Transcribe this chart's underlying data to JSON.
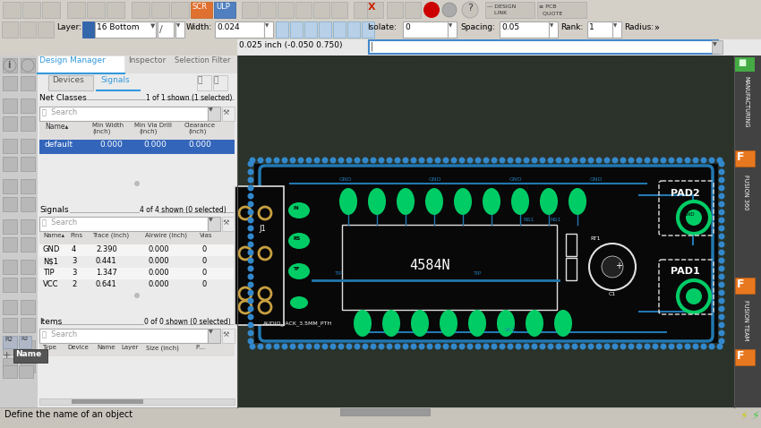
{
  "bg_main": "#2b2b2b",
  "bg_panel": "#ebebeb",
  "bg_toolbar": "#d4d0c8",
  "bg_canvas": "#2a322a",
  "grid_color": "#323c32",
  "board_bg": "#080808",
  "trace_color": "#2278b0",
  "pad_color": "#00cc66",
  "pad_dark": "#004422",
  "text_white": "#ffffff",
  "text_black": "#000000",
  "tab_active_color": "#3399dd",
  "row_selected_bg": "#3366bb",
  "toolbar_bg": "#d4d0c8",
  "status_bar_bg": "#c8c4bc",
  "right_panel_bg": "#404040",
  "fusion_orange": "#e87820",
  "fusion_green": "#44aa44",
  "via_dot_color": "#3388cc",
  "thole_color": "#c8a040",
  "white_outline": "#e0e0e0",
  "gray_outline": "#888888",
  "net_classes_header": "Net Classes",
  "net_classes_count": "1 of 1 shown (1 selected)",
  "signals_header": "Signals",
  "signals_count": "4 of 4 shown (0 selected)",
  "items_header": "Items",
  "items_count": "0 of 0 shown (0 selected)",
  "signals": [
    [
      "GND",
      "4",
      "2.390",
      "0.000",
      "0"
    ],
    [
      "N$1",
      "3",
      "0.441",
      "0.000",
      "0"
    ],
    [
      "TIP",
      "3",
      "1.347",
      "0.000",
      "0"
    ],
    [
      "VCC",
      "2",
      "0.641",
      "0.000",
      "0"
    ]
  ],
  "tab1": "Design Manager",
  "tab2": "Inspector",
  "tab3": "Selection Filter",
  "sub_tab1": "Devices",
  "sub_tab2": "Signals",
  "status_text": "Define the name of an object",
  "board_label": "J1",
  "component_label": "AUDIO_JACK_3.5MM_PTH",
  "ic_label": "4584N",
  "pad2_label": "PAD2",
  "pad1_label": "PAD1",
  "mfg_label": "MANUFACTURING",
  "fusion_label": "FUSION 360",
  "fusion_team_label": "FUSION TEAM",
  "coord_text": "0.025 inch (-0.050 0.750)"
}
